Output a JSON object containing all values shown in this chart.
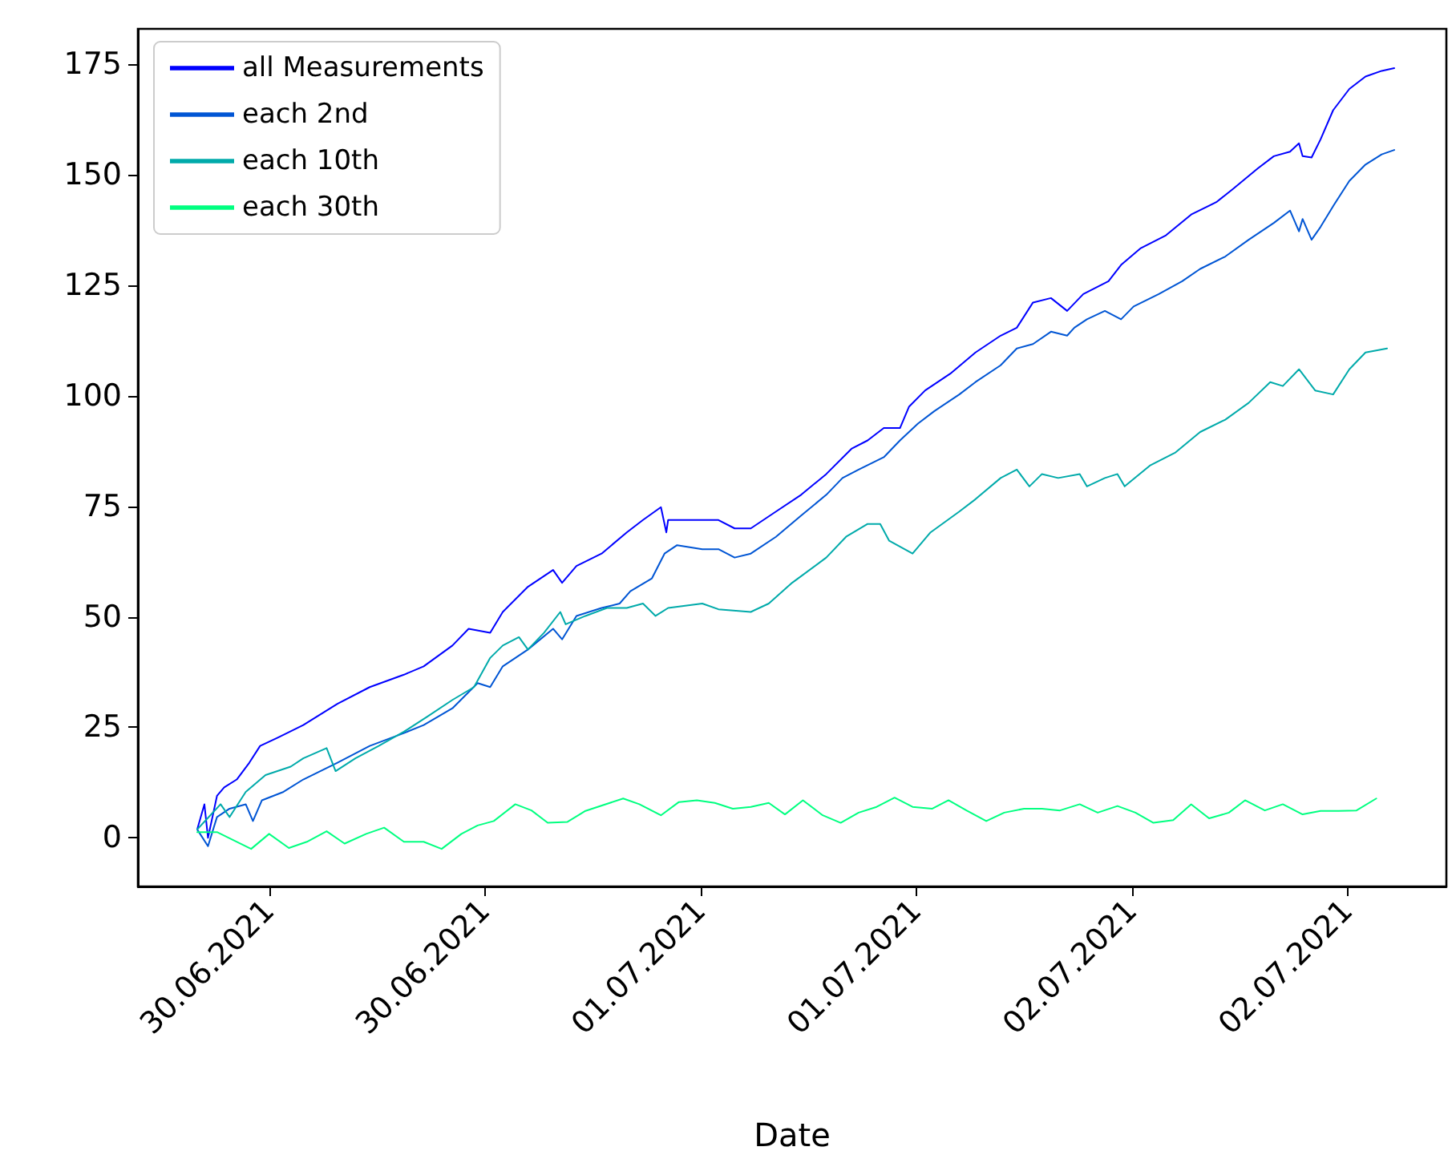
{
  "chart_data": {
    "type": "line",
    "xlabel": "Date",
    "legend": "top left",
    "grid": false,
    "marker": "none",
    "line_style": "solid",
    "xlim": [
      "2021-06-29T16:42",
      "2021-07-02T17:30"
    ],
    "ylim": [
      -11,
      183
    ],
    "xticks": [
      {
        "value": "2021-06-30T00:00",
        "label": "30.06.2021"
      },
      {
        "value": "2021-06-30T12:00",
        "label": "30.06.2021"
      },
      {
        "value": "2021-07-01T00:00",
        "label": "01.07.2021"
      },
      {
        "value": "2021-07-01T12:00",
        "label": "01.07.2021"
      },
      {
        "value": "2021-07-02T00:00",
        "label": "02.07.2021"
      },
      {
        "value": "2021-07-02T12:00",
        "label": "02.07.2021"
      }
    ],
    "yticks": [
      0,
      25,
      50,
      75,
      100,
      125,
      150,
      175
    ],
    "series": [
      {
        "name": "all Measurements",
        "color": "#0000ff",
        "x": [
          "2021-06-29T20:00",
          "2021-06-29T20:24",
          "2021-06-29T20:36",
          "2021-06-29T21:06",
          "2021-06-29T21:30",
          "2021-06-29T22:12",
          "2021-06-29T22:54",
          "2021-06-29T23:30",
          "2021-06-30T00:30",
          "2021-06-30T01:54",
          "2021-06-30T03:48",
          "2021-06-30T05:36",
          "2021-06-30T07:30",
          "2021-06-30T08:36",
          "2021-06-30T10:12",
          "2021-06-30T11:06",
          "2021-06-30T12:18",
          "2021-06-30T13:00",
          "2021-06-30T14:24",
          "2021-06-30T15:48",
          "2021-06-30T16:18",
          "2021-06-30T17:06",
          "2021-06-30T18:30",
          "2021-06-30T19:54",
          "2021-06-30T20:48",
          "2021-06-30T21:48",
          "2021-06-30T22:06",
          "2021-06-30T22:12",
          "2021-06-30T23:06",
          "2021-07-01T01:00",
          "2021-07-01T01:54",
          "2021-07-01T02:48",
          "2021-07-01T04:12",
          "2021-07-01T05:36",
          "2021-07-01T07:00",
          "2021-07-01T08:24",
          "2021-07-01T09:18",
          "2021-07-01T10:12",
          "2021-07-01T11:06",
          "2021-07-01T11:36",
          "2021-07-01T12:30",
          "2021-07-01T13:54",
          "2021-07-01T15:18",
          "2021-07-01T16:42",
          "2021-07-01T17:36",
          "2021-07-01T18:30",
          "2021-07-01T19:30",
          "2021-07-01T20:24",
          "2021-07-01T21:18",
          "2021-07-01T22:42",
          "2021-07-01T23:24",
          "2021-07-02T00:30",
          "2021-07-02T01:54",
          "2021-07-02T03:18",
          "2021-07-02T04:42",
          "2021-07-02T05:36",
          "2021-07-02T07:00",
          "2021-07-02T07:54",
          "2021-07-02T08:48",
          "2021-07-02T09:18",
          "2021-07-02T09:30",
          "2021-07-02T10:00",
          "2021-07-02T10:30",
          "2021-07-02T11:12",
          "2021-07-02T12:06",
          "2021-07-02T13:00",
          "2021-07-02T13:54",
          "2021-07-02T14:36"
        ],
        "values": [
          1.9,
          7.6,
          0.0,
          9.5,
          11.4,
          13.2,
          17.0,
          20.8,
          22.7,
          25.5,
          30.3,
          34.1,
          36.9,
          38.8,
          43.5,
          47.3,
          46.4,
          51.1,
          56.8,
          60.6,
          57.7,
          61.5,
          64.3,
          69.1,
          71.9,
          74.8,
          69.1,
          71.9,
          71.9,
          71.9,
          70.0,
          70.0,
          73.8,
          77.6,
          82.3,
          88.0,
          89.9,
          92.7,
          92.7,
          97.5,
          101.2,
          105.0,
          109.8,
          113.6,
          115.4,
          121.1,
          122.1,
          119.2,
          123.0,
          125.9,
          129.6,
          133.4,
          136.3,
          141.0,
          143.8,
          146.7,
          151.4,
          154.2,
          155.2,
          157.1,
          154.2,
          153.9,
          158.0,
          164.6,
          169.4,
          172.2,
          173.5,
          174.1
        ]
      },
      {
        "name": "each 2nd",
        "color": "#0055d4",
        "x": [
          "2021-06-29T20:00",
          "2021-06-29T20:36",
          "2021-06-29T21:06",
          "2021-06-29T21:48",
          "2021-06-29T22:42",
          "2021-06-29T23:06",
          "2021-06-29T23:36",
          "2021-06-30T00:48",
          "2021-06-30T01:54",
          "2021-06-30T03:48",
          "2021-06-30T05:36",
          "2021-06-30T07:30",
          "2021-06-30T08:36",
          "2021-06-30T10:12",
          "2021-06-30T11:36",
          "2021-06-30T12:18",
          "2021-06-30T13:00",
          "2021-06-30T14:24",
          "2021-06-30T15:48",
          "2021-06-30T16:18",
          "2021-06-30T17:06",
          "2021-06-30T18:30",
          "2021-06-30T19:30",
          "2021-06-30T20:06",
          "2021-06-30T21:18",
          "2021-06-30T22:00",
          "2021-06-30T22:42",
          "2021-07-01T00:06",
          "2021-07-01T01:00",
          "2021-07-01T01:54",
          "2021-07-01T02:48",
          "2021-07-01T04:12",
          "2021-07-01T05:36",
          "2021-07-01T07:00",
          "2021-07-01T07:54",
          "2021-07-01T08:48",
          "2021-07-01T10:12",
          "2021-07-01T11:06",
          "2021-07-01T11:36",
          "2021-07-01T12:06",
          "2021-07-01T13:00",
          "2021-07-01T14:24",
          "2021-07-01T15:18",
          "2021-07-01T16:42",
          "2021-07-01T17:36",
          "2021-07-01T18:30",
          "2021-07-01T19:30",
          "2021-07-01T20:24",
          "2021-07-01T20:48",
          "2021-07-01T21:30",
          "2021-07-01T22:30",
          "2021-07-01T23:24",
          "2021-07-02T00:06",
          "2021-07-02T01:30",
          "2021-07-02T02:48",
          "2021-07-02T03:48",
          "2021-07-02T05:12",
          "2021-07-02T06:30",
          "2021-07-02T07:54",
          "2021-07-02T08:48",
          "2021-07-02T09:18",
          "2021-07-02T09:30",
          "2021-07-02T10:00",
          "2021-07-02T10:30",
          "2021-07-02T11:12",
          "2021-07-02T12:06",
          "2021-07-02T13:00",
          "2021-07-02T13:54",
          "2021-07-02T14:36"
        ],
        "values": [
          1.9,
          -1.9,
          4.7,
          6.6,
          7.6,
          3.8,
          8.5,
          10.4,
          13.2,
          17.0,
          20.8,
          23.7,
          25.5,
          29.3,
          35.0,
          34.1,
          38.8,
          42.6,
          47.3,
          44.9,
          50.2,
          52.0,
          53.0,
          55.8,
          58.7,
          64.3,
          66.2,
          65.3,
          65.3,
          63.4,
          64.3,
          68.1,
          72.9,
          77.6,
          81.4,
          83.3,
          86.1,
          89.9,
          91.8,
          93.7,
          96.5,
          100.3,
          103.1,
          106.9,
          110.7,
          111.7,
          114.5,
          113.6,
          115.4,
          117.3,
          119.2,
          117.3,
          120.2,
          123.0,
          125.9,
          128.7,
          131.5,
          135.3,
          139.1,
          141.9,
          137.2,
          140.0,
          135.3,
          138.2,
          142.9,
          148.6,
          152.3,
          154.6,
          155.6
        ]
      },
      {
        "name": "each 10th",
        "color": "#00aaaa",
        "x": [
          "2021-06-29T20:00",
          "2021-06-29T21:18",
          "2021-06-29T21:48",
          "2021-06-29T22:42",
          "2021-06-29T23:48",
          "2021-06-30T01:12",
          "2021-06-30T01:54",
          "2021-06-30T03:12",
          "2021-06-30T03:42",
          "2021-06-30T04:48",
          "2021-06-30T06:06",
          "2021-06-30T07:30",
          "2021-06-30T08:48",
          "2021-06-30T10:12",
          "2021-06-30T11:24",
          "2021-06-30T12:18",
          "2021-06-30T13:00",
          "2021-06-30T13:54",
          "2021-06-30T14:24",
          "2021-06-30T15:18",
          "2021-06-30T16:12",
          "2021-06-30T16:30",
          "2021-06-30T17:36",
          "2021-06-30T18:48",
          "2021-06-30T19:54",
          "2021-06-30T20:48",
          "2021-06-30T21:30",
          "2021-06-30T22:12",
          "2021-07-01T00:06",
          "2021-07-01T01:00",
          "2021-07-01T02:48",
          "2021-07-01T03:48",
          "2021-07-01T05:06",
          "2021-07-01T07:00",
          "2021-07-01T08:06",
          "2021-07-01T09:18",
          "2021-07-01T10:00",
          "2021-07-01T10:30",
          "2021-07-01T11:48",
          "2021-07-01T12:48",
          "2021-07-01T14:24",
          "2021-07-01T15:18",
          "2021-07-01T16:42",
          "2021-07-01T17:36",
          "2021-07-01T18:18",
          "2021-07-01T19:00",
          "2021-07-01T19:54",
          "2021-07-01T21:06",
          "2021-07-01T21:30",
          "2021-07-01T22:30",
          "2021-07-01T23:12",
          "2021-07-01T23:36",
          "2021-07-02T01:00",
          "2021-07-02T02:24",
          "2021-07-02T03:48",
          "2021-07-02T05:12",
          "2021-07-02T06:30",
          "2021-07-02T07:42",
          "2021-07-02T08:24",
          "2021-07-02T09:18",
          "2021-07-02T10:12",
          "2021-07-02T11:12",
          "2021-07-02T12:06",
          "2021-07-02T13:00",
          "2021-07-02T14:12"
        ],
        "values": [
          1.9,
          7.6,
          4.7,
          10.4,
          14.2,
          16.1,
          18.0,
          20.3,
          15.1,
          18.0,
          20.8,
          24.0,
          27.4,
          31.2,
          34.1,
          40.7,
          43.5,
          45.4,
          42.6,
          46.4,
          51.1,
          48.3,
          50.2,
          52.0,
          52.0,
          53.0,
          50.2,
          52.0,
          53.0,
          51.7,
          51.1,
          53.0,
          57.7,
          63.4,
          68.1,
          71.0,
          71.0,
          67.2,
          64.3,
          69.1,
          73.8,
          76.6,
          81.4,
          83.3,
          79.5,
          82.3,
          81.4,
          82.3,
          79.5,
          81.4,
          82.3,
          79.5,
          84.2,
          87.1,
          91.8,
          94.6,
          98.4,
          103.1,
          102.2,
          106.0,
          101.2,
          100.3,
          106.0,
          109.8,
          110.7
        ]
      },
      {
        "name": "each 30th",
        "color": "#00ff80",
        "x": [
          "2021-06-29T20:00",
          "2021-06-29T21:06",
          "2021-06-29T23:00",
          "2021-06-30T00:00",
          "2021-06-30T01:06",
          "2021-06-30T02:06",
          "2021-06-30T03:12",
          "2021-06-30T04:12",
          "2021-06-30T05:24",
          "2021-06-30T06:24",
          "2021-06-30T07:30",
          "2021-06-30T08:36",
          "2021-06-30T09:36",
          "2021-06-30T10:42",
          "2021-06-30T11:36",
          "2021-06-30T12:30",
          "2021-06-30T13:42",
          "2021-06-30T14:36",
          "2021-06-30T15:30",
          "2021-06-30T16:36",
          "2021-06-30T17:36",
          "2021-06-30T19:42",
          "2021-06-30T20:36",
          "2021-06-30T21:48",
          "2021-06-30T22:48",
          "2021-06-30T23:48",
          "2021-07-01T00:48",
          "2021-07-01T01:48",
          "2021-07-01T02:48",
          "2021-07-01T03:48",
          "2021-07-01T04:42",
          "2021-07-01T05:42",
          "2021-07-01T06:48",
          "2021-07-01T07:48",
          "2021-07-01T08:48",
          "2021-07-01T09:48",
          "2021-07-01T10:48",
          "2021-07-01T11:48",
          "2021-07-01T12:54",
          "2021-07-01T13:48",
          "2021-07-01T14:48",
          "2021-07-01T15:54",
          "2021-07-01T16:54",
          "2021-07-01T18:00",
          "2021-07-01T19:00",
          "2021-07-01T20:00",
          "2021-07-01T21:06",
          "2021-07-01T22:06",
          "2021-07-01T23:12",
          "2021-07-02T00:12",
          "2021-07-02T01:12",
          "2021-07-02T02:18",
          "2021-07-02T03:18",
          "2021-07-02T04:18",
          "2021-07-02T05:24",
          "2021-07-02T06:18",
          "2021-07-02T07:24",
          "2021-07-02T08:24",
          "2021-07-02T09:30",
          "2021-07-02T10:30",
          "2021-07-02T11:30",
          "2021-07-02T12:30",
          "2021-07-02T13:36"
        ],
        "values": [
          1.3,
          1.3,
          -2.5,
          0.9,
          -2.3,
          -0.9,
          1.5,
          -1.3,
          0.9,
          2.3,
          -0.9,
          -0.9,
          -2.5,
          0.9,
          2.8,
          3.8,
          7.6,
          6.2,
          3.4,
          3.6,
          6.1,
          8.9,
          7.6,
          5.1,
          8.1,
          8.5,
          7.9,
          6.6,
          7.0,
          7.9,
          5.3,
          8.5,
          5.1,
          3.4,
          5.7,
          7.0,
          9.1,
          7.0,
          6.6,
          8.5,
          6.2,
          3.8,
          5.7,
          6.6,
          6.6,
          6.2,
          7.6,
          5.7,
          7.2,
          5.7,
          3.4,
          4.0,
          7.6,
          4.4,
          5.7,
          8.5,
          6.2,
          7.6,
          5.3,
          6.1,
          6.1,
          6.2,
          8.9
        ]
      }
    ]
  }
}
